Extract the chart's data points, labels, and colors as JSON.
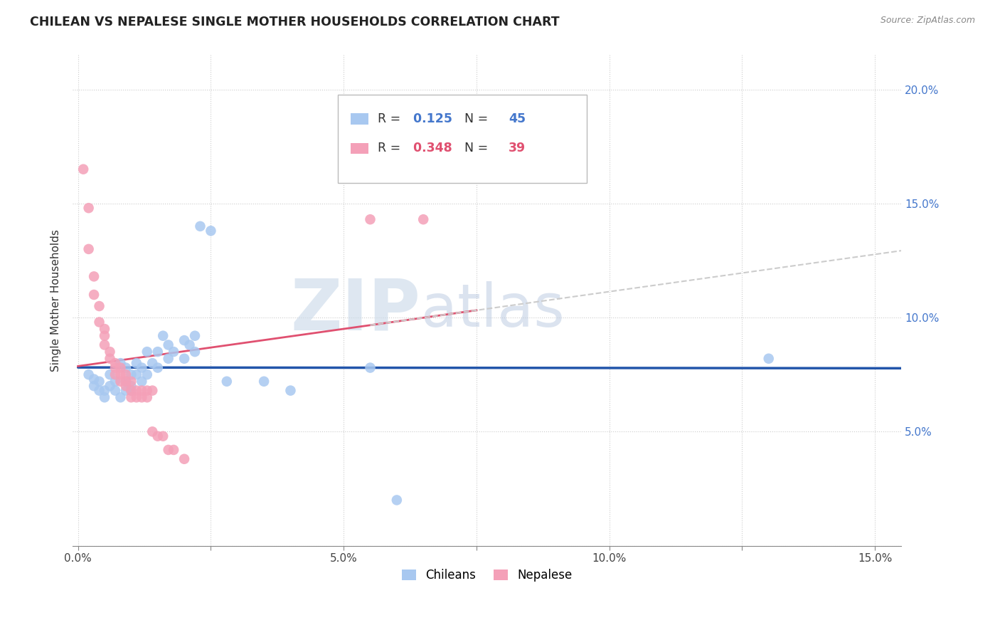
{
  "title": "CHILEAN VS NEPALESE SINGLE MOTHER HOUSEHOLDS CORRELATION CHART",
  "source": "Source: ZipAtlas.com",
  "ylabel": "Single Mother Households",
  "chilean_color": "#a8c8f0",
  "nepalese_color": "#f4a0b8",
  "chilean_R": 0.125,
  "chilean_N": 45,
  "nepalese_R": 0.348,
  "nepalese_N": 39,
  "chilean_line_color": "#2255aa",
  "nepalese_line_color": "#e05070",
  "watermark_zip": "ZIP",
  "watermark_atlas": "atlas",
  "chilean_points": [
    [
      0.002,
      0.075
    ],
    [
      0.003,
      0.073
    ],
    [
      0.003,
      0.07
    ],
    [
      0.004,
      0.072
    ],
    [
      0.004,
      0.068
    ],
    [
      0.005,
      0.068
    ],
    [
      0.005,
      0.065
    ],
    [
      0.006,
      0.075
    ],
    [
      0.006,
      0.07
    ],
    [
      0.007,
      0.072
    ],
    [
      0.007,
      0.068
    ],
    [
      0.008,
      0.08
    ],
    [
      0.008,
      0.065
    ],
    [
      0.009,
      0.078
    ],
    [
      0.009,
      0.072
    ],
    [
      0.009,
      0.068
    ],
    [
      0.01,
      0.075
    ],
    [
      0.01,
      0.07
    ],
    [
      0.01,
      0.068
    ],
    [
      0.011,
      0.075
    ],
    [
      0.011,
      0.08
    ],
    [
      0.012,
      0.078
    ],
    [
      0.012,
      0.072
    ],
    [
      0.013,
      0.085
    ],
    [
      0.013,
      0.075
    ],
    [
      0.014,
      0.08
    ],
    [
      0.015,
      0.085
    ],
    [
      0.015,
      0.078
    ],
    [
      0.016,
      0.092
    ],
    [
      0.017,
      0.088
    ],
    [
      0.017,
      0.082
    ],
    [
      0.018,
      0.085
    ],
    [
      0.02,
      0.09
    ],
    [
      0.02,
      0.082
    ],
    [
      0.021,
      0.088
    ],
    [
      0.022,
      0.092
    ],
    [
      0.022,
      0.085
    ],
    [
      0.023,
      0.14
    ],
    [
      0.025,
      0.138
    ],
    [
      0.028,
      0.072
    ],
    [
      0.035,
      0.072
    ],
    [
      0.04,
      0.068
    ],
    [
      0.055,
      0.078
    ],
    [
      0.06,
      0.02
    ],
    [
      0.13,
      0.082
    ]
  ],
  "nepalese_points": [
    [
      0.001,
      0.165
    ],
    [
      0.002,
      0.148
    ],
    [
      0.002,
      0.13
    ],
    [
      0.003,
      0.118
    ],
    [
      0.003,
      0.11
    ],
    [
      0.004,
      0.105
    ],
    [
      0.004,
      0.098
    ],
    [
      0.005,
      0.095
    ],
    [
      0.005,
      0.092
    ],
    [
      0.005,
      0.088
    ],
    [
      0.006,
      0.085
    ],
    [
      0.006,
      0.082
    ],
    [
      0.007,
      0.08
    ],
    [
      0.007,
      0.078
    ],
    [
      0.007,
      0.075
    ],
    [
      0.008,
      0.078
    ],
    [
      0.008,
      0.075
    ],
    [
      0.008,
      0.072
    ],
    [
      0.009,
      0.075
    ],
    [
      0.009,
      0.072
    ],
    [
      0.009,
      0.07
    ],
    [
      0.01,
      0.072
    ],
    [
      0.01,
      0.068
    ],
    [
      0.01,
      0.065
    ],
    [
      0.011,
      0.068
    ],
    [
      0.011,
      0.065
    ],
    [
      0.012,
      0.068
    ],
    [
      0.012,
      0.065
    ],
    [
      0.013,
      0.068
    ],
    [
      0.013,
      0.065
    ],
    [
      0.014,
      0.068
    ],
    [
      0.014,
      0.05
    ],
    [
      0.015,
      0.048
    ],
    [
      0.016,
      0.048
    ],
    [
      0.017,
      0.042
    ],
    [
      0.018,
      0.042
    ],
    [
      0.02,
      0.038
    ],
    [
      0.055,
      0.143
    ],
    [
      0.065,
      0.143
    ]
  ]
}
